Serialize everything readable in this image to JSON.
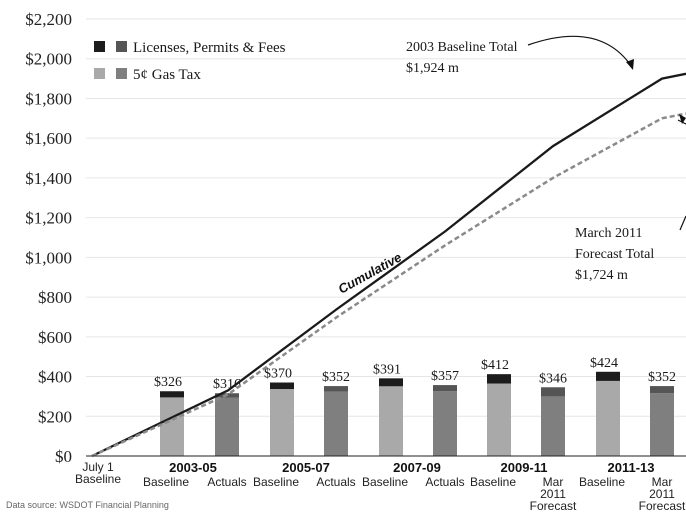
{
  "chart_data": {
    "type": "bar",
    "title": "",
    "xlabel": "",
    "ylabel": "",
    "ylim": [
      0,
      2200
    ],
    "y_ticks": [
      0,
      200,
      400,
      600,
      800,
      1000,
      1200,
      1400,
      1600,
      1800,
      2000,
      2200
    ],
    "y_tick_labels": [
      "$0",
      "$200",
      "$400",
      "$600",
      "$800",
      "$1,000",
      "$1,200",
      "$1,400",
      "$1,600",
      "$1,800",
      "$2,000",
      "$2,200"
    ],
    "legend": {
      "placement": "top-left",
      "entries": [
        {
          "label": "Licenses, Permits & Fees",
          "colors": [
            "#1c1c1c",
            "#555555"
          ]
        },
        {
          "label": "5¢ Gas Tax",
          "colors": [
            "#a9a9a9",
            "#7f7f7f"
          ]
        }
      ]
    },
    "periods": [
      "2003-05",
      "2005-07",
      "2007-09",
      "2009-11",
      "2011-13"
    ],
    "x_start_label": [
      "July 1",
      "Baseline"
    ],
    "bars": [
      {
        "period": "2003-05",
        "kind": "baseline",
        "sub_label": [
          "Baseline"
        ],
        "total_label": "$326",
        "gas_tax": 295,
        "fees": 31
      },
      {
        "period": "2003-05",
        "kind": "actual",
        "sub_label": [
          "Actuals"
        ],
        "total_label": "$316",
        "gas_tax": 293,
        "fees": 23
      },
      {
        "period": "2005-07",
        "kind": "baseline",
        "sub_label": [
          "Baseline"
        ],
        "total_label": "$370",
        "gas_tax": 337,
        "fees": 33
      },
      {
        "period": "2005-07",
        "kind": "actual",
        "sub_label": [
          "Actuals"
        ],
        "total_label": "$352",
        "gas_tax": 325,
        "fees": 27
      },
      {
        "period": "2007-09",
        "kind": "baseline",
        "sub_label": [
          "Baseline"
        ],
        "total_label": "$391",
        "gas_tax": 351,
        "fees": 40
      },
      {
        "period": "2007-09",
        "kind": "actual",
        "sub_label": [
          "Actuals"
        ],
        "total_label": "$357",
        "gas_tax": 327,
        "fees": 30
      },
      {
        "period": "2009-11",
        "kind": "baseline",
        "sub_label": [
          "Baseline"
        ],
        "total_label": "$412",
        "gas_tax": 365,
        "fees": 47
      },
      {
        "period": "2009-11",
        "kind": "actual",
        "sub_label": [
          "Mar",
          "2011",
          "Forecast"
        ],
        "total_label": "$346",
        "gas_tax": 300,
        "fees": 46
      },
      {
        "period": "2011-13",
        "kind": "baseline",
        "sub_label": [
          "Baseline"
        ],
        "total_label": "$424",
        "gas_tax": 378,
        "fees": 46
      },
      {
        "period": "2011-13",
        "kind": "actual",
        "sub_label": [
          "Mar",
          "2011",
          "Forecast"
        ],
        "total_label": "$352",
        "gas_tax": 316,
        "fees": 36
      }
    ],
    "series": [
      {
        "name": "Cumulative",
        "style": "solid",
        "color": "#1a1a1a",
        "x": [
          "July 1 Baseline",
          "2003-05",
          "2005-07",
          "2007-09",
          "2009-11",
          "2011-13",
          "end"
        ],
        "values": [
          0,
          330,
          740,
          1130,
          1560,
          1900,
          1924
        ]
      },
      {
        "name": "",
        "style": "dashed",
        "color": "#8a8a8a",
        "x": [
          "July 1 Baseline",
          "2003-05",
          "2005-07",
          "2007-09",
          "2009-11",
          "2011-13",
          "end"
        ],
        "values": [
          0,
          310,
          700,
          1060,
          1400,
          1700,
          1724
        ]
      }
    ],
    "line_label": "Cumulative",
    "annotations": [
      {
        "id": "baseline_total",
        "lines": [
          "2003 Baseline Total",
          "$1,924 m"
        ]
      },
      {
        "id": "forecast_total",
        "lines": [
          "March 2011",
          "Forecast Total",
          "$1,724 m"
        ]
      }
    ]
  },
  "footer": {
    "source": "Data source: WSDOT Financial Planning"
  }
}
